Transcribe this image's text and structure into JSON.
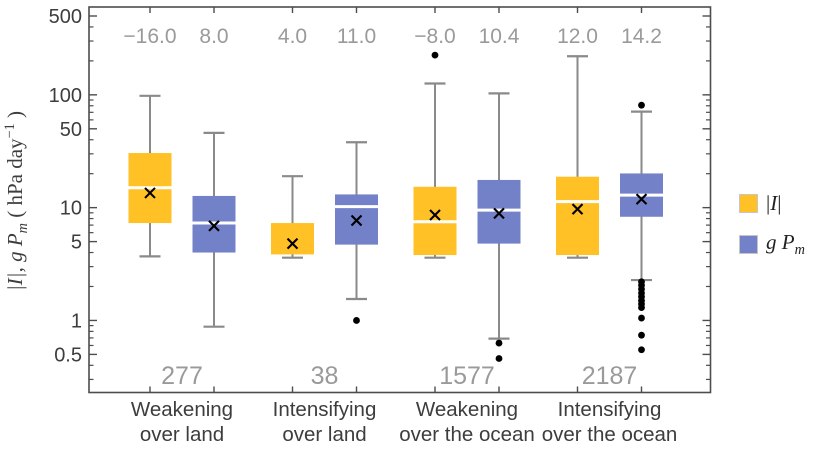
{
  "chart_data": {
    "type": "box",
    "title": "",
    "yscale": "log",
    "ylim": [
      0.24,
      575
    ],
    "grid": false,
    "legend_position": "right",
    "ylabel": "|I|, g Pm  ( hPa day−1 )",
    "ylabel_parts": {
      "bar1": "|",
      "I": "I",
      "bar2": "|,",
      "gp": " g P",
      "sub": "m",
      "unit_pre": " ( hPa day",
      "sup": "−1",
      "unit_post": " )"
    },
    "yticks": [
      {
        "v": 500,
        "label": "500"
      },
      {
        "v": 100,
        "label": "100"
      },
      {
        "v": 50,
        "label": "50"
      },
      {
        "v": 10,
        "label": "10"
      },
      {
        "v": 5,
        "label": "5"
      },
      {
        "v": 1,
        "label": "1"
      },
      {
        "v": 0.5,
        "label": "0.5"
      }
    ],
    "yticks_minor": [
      0.3,
      0.4,
      0.6,
      0.7,
      0.8,
      0.9,
      2,
      3,
      4,
      6,
      7,
      8,
      9,
      20,
      30,
      40,
      60,
      70,
      80,
      90,
      200,
      300,
      400
    ],
    "legend": [
      {
        "name": "I",
        "bar1": "|",
        "main": "I",
        "bar2": "|"
      },
      {
        "name": "gPm",
        "main": "g P",
        "sub": "m"
      }
    ],
    "colors": {
      "I": "#FFC125",
      "gPm": "#7381C9",
      "whisker": "#8a8a8a",
      "frame": "#4d4d4d",
      "tick_text": "#3d3d3d",
      "category_text": "#3d3d3d",
      "annotation": "#9a9a9a",
      "median_line": "#ffffff",
      "mean_marker": "#000000",
      "outlier": "#000000",
      "swatch_border": "#c6c6c6"
    },
    "groups": [
      {
        "category_line1": "Weakening",
        "category_line2": "over land",
        "count": "277",
        "series": [
          {
            "name": "I",
            "annotation": "−16.0",
            "whisker_low": 3.7,
            "q1": 7.3,
            "median": 15.0,
            "q3": 30.5,
            "whisker_high": 98,
            "mean": 13.5,
            "outliers": []
          },
          {
            "name": "gPm",
            "annotation": "8.0",
            "whisker_low": 0.88,
            "q1": 4.0,
            "median": 7.3,
            "q3": 12.7,
            "whisker_high": 46,
            "mean": 6.9,
            "outliers": []
          }
        ]
      },
      {
        "category_line1": "Intensifying",
        "category_line2": "over land",
        "count": "38",
        "series": [
          {
            "name": "I",
            "annotation": "4.0",
            "whisker_low": 3.6,
            "q1": 3.85,
            "median": 3.9,
            "q3": 7.3,
            "whisker_high": 19,
            "mean": 4.8,
            "outliers": []
          },
          {
            "name": "gPm",
            "annotation": "11.0",
            "whisker_low": 1.55,
            "q1": 4.7,
            "median": 10.2,
            "q3": 13.1,
            "whisker_high": 38,
            "mean": 7.7,
            "outliers": [
              1.0
            ]
          }
        ]
      },
      {
        "category_line1": "Weakening",
        "category_line2": "over the ocean",
        "count": "1577",
        "series": [
          {
            "name": "I",
            "annotation": "−8.0",
            "whisker_low": 3.6,
            "q1": 3.8,
            "median": 7.5,
            "q3": 15.3,
            "whisker_high": 126,
            "mean": 8.6,
            "outliers": [
              225
            ]
          },
          {
            "name": "gPm",
            "annotation": "10.4",
            "whisker_low": 0.69,
            "q1": 4.8,
            "median": 9.5,
            "q3": 17.6,
            "whisker_high": 103,
            "mean": 8.9,
            "outliers": [
              0.63,
              0.46
            ]
          }
        ]
      },
      {
        "category_line1": "Intensifying",
        "category_line2": "over the ocean",
        "count": "2187",
        "series": [
          {
            "name": "I",
            "annotation": "12.0",
            "whisker_low": 3.6,
            "q1": 3.8,
            "median": 11.3,
            "q3": 18.8,
            "whisker_high": 220,
            "mean": 9.7,
            "outliers": []
          },
          {
            "name": "gPm",
            "annotation": "14.2",
            "whisker_low": 2.28,
            "q1": 8.3,
            "median": 12.9,
            "q3": 20.1,
            "whisker_high": 71,
            "mean": 11.9,
            "outliers": [
              81,
              2.2,
              2.05,
              1.9,
              1.75,
              1.62,
              1.5,
              1.4,
              1.3,
              1.05,
              0.74,
              0.55
            ]
          }
        ]
      }
    ]
  }
}
